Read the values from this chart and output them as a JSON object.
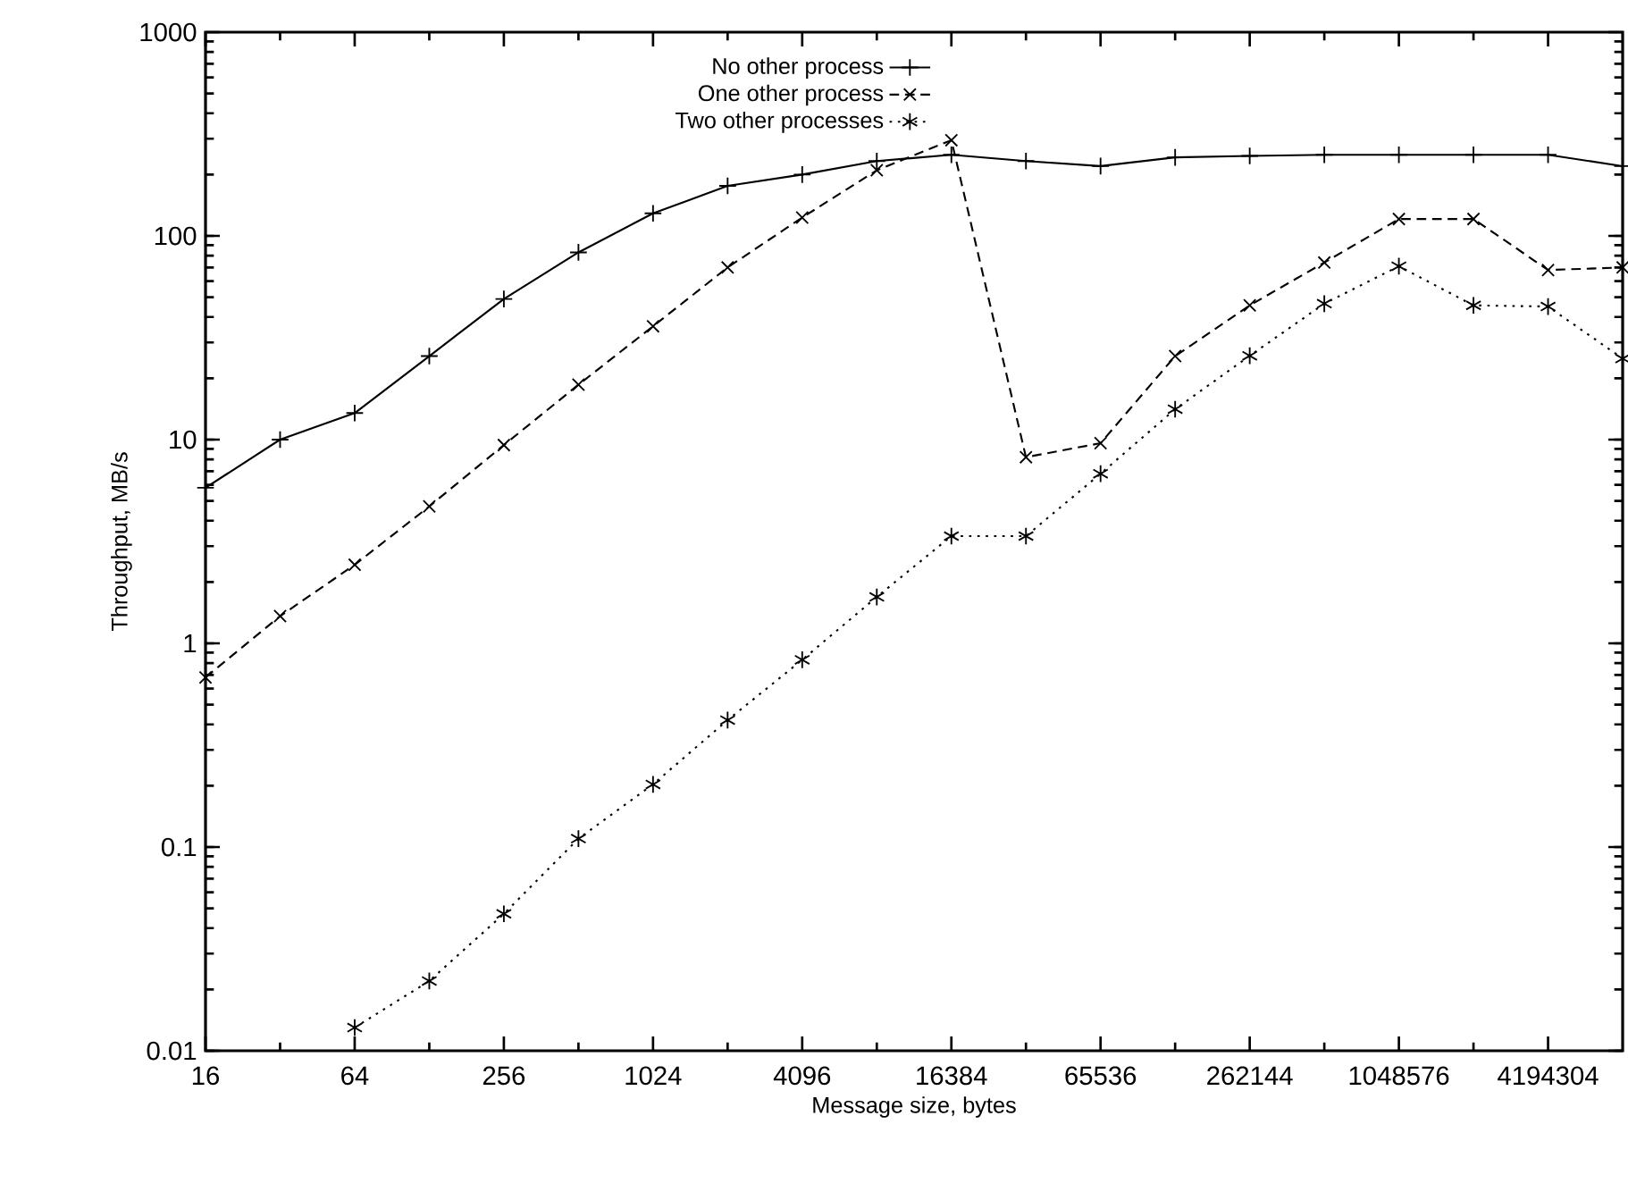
{
  "chart_data": {
    "type": "line",
    "xlabel": "Message size, bytes",
    "ylabel": "Throughput, MB/s",
    "log": "xy",
    "grid": false,
    "legend": "top",
    "x": [
      16,
      32,
      64,
      128,
      256,
      512,
      1024,
      2048,
      4096,
      8192,
      16384,
      32768,
      65536,
      131072,
      262144,
      524288,
      1048576,
      2097152,
      4194304,
      8388608
    ],
    "series": [
      {
        "name": "No other process",
        "color": "#000000",
        "marker": "plus",
        "line_style": "solid",
        "values": [
          5.8,
          10,
          13.5,
          25.7,
          49,
          83,
          129,
          176,
          200,
          233,
          250,
          233,
          220,
          243,
          247,
          250,
          250,
          250,
          250,
          220
        ]
      },
      {
        "name": "One other process",
        "color": "#000000",
        "marker": "cross",
        "line_style": "dashed",
        "values": [
          0.68,
          1.36,
          2.43,
          4.7,
          9.4,
          18.6,
          36,
          70,
          123,
          210,
          295,
          8.2,
          9.6,
          25.7,
          45.6,
          74,
          121,
          121,
          68,
          70
        ]
      },
      {
        "name": "Two other processes",
        "color": "#000000",
        "marker": "cross",
        "line_style": "dotted",
        "values": [
          null,
          null,
          0.013,
          0.022,
          0.047,
          0.11,
          0.203,
          0.42,
          0.83,
          1.69,
          3.36,
          3.36,
          6.8,
          14.1,
          25.8,
          46.5,
          71,
          45.6,
          45,
          25
        ]
      }
    ],
    "xlim": [
      16,
      8388608
    ],
    "ylim": [
      0.01,
      1000
    ],
    "xticks": [
      16,
      {
        "value": 32,
        "label": null
      },
      64,
      {
        "value": 128,
        "label": null
      },
      256,
      {
        "value": 512,
        "label": null
      },
      1024,
      {
        "value": 2048,
        "label": null
      },
      4096,
      {
        "value": 8192,
        "label": null
      },
      16384,
      {
        "value": 32768,
        "label": null
      },
      65536,
      {
        "value": 131072,
        "label": null
      },
      262144,
      {
        "value": 524288,
        "label": null
      },
      1048576,
      {
        "value": 2097152,
        "label": null
      },
      4194304
    ],
    "yticks": [
      0.01,
      0.1,
      1,
      10,
      100,
      1000
    ]
  }
}
